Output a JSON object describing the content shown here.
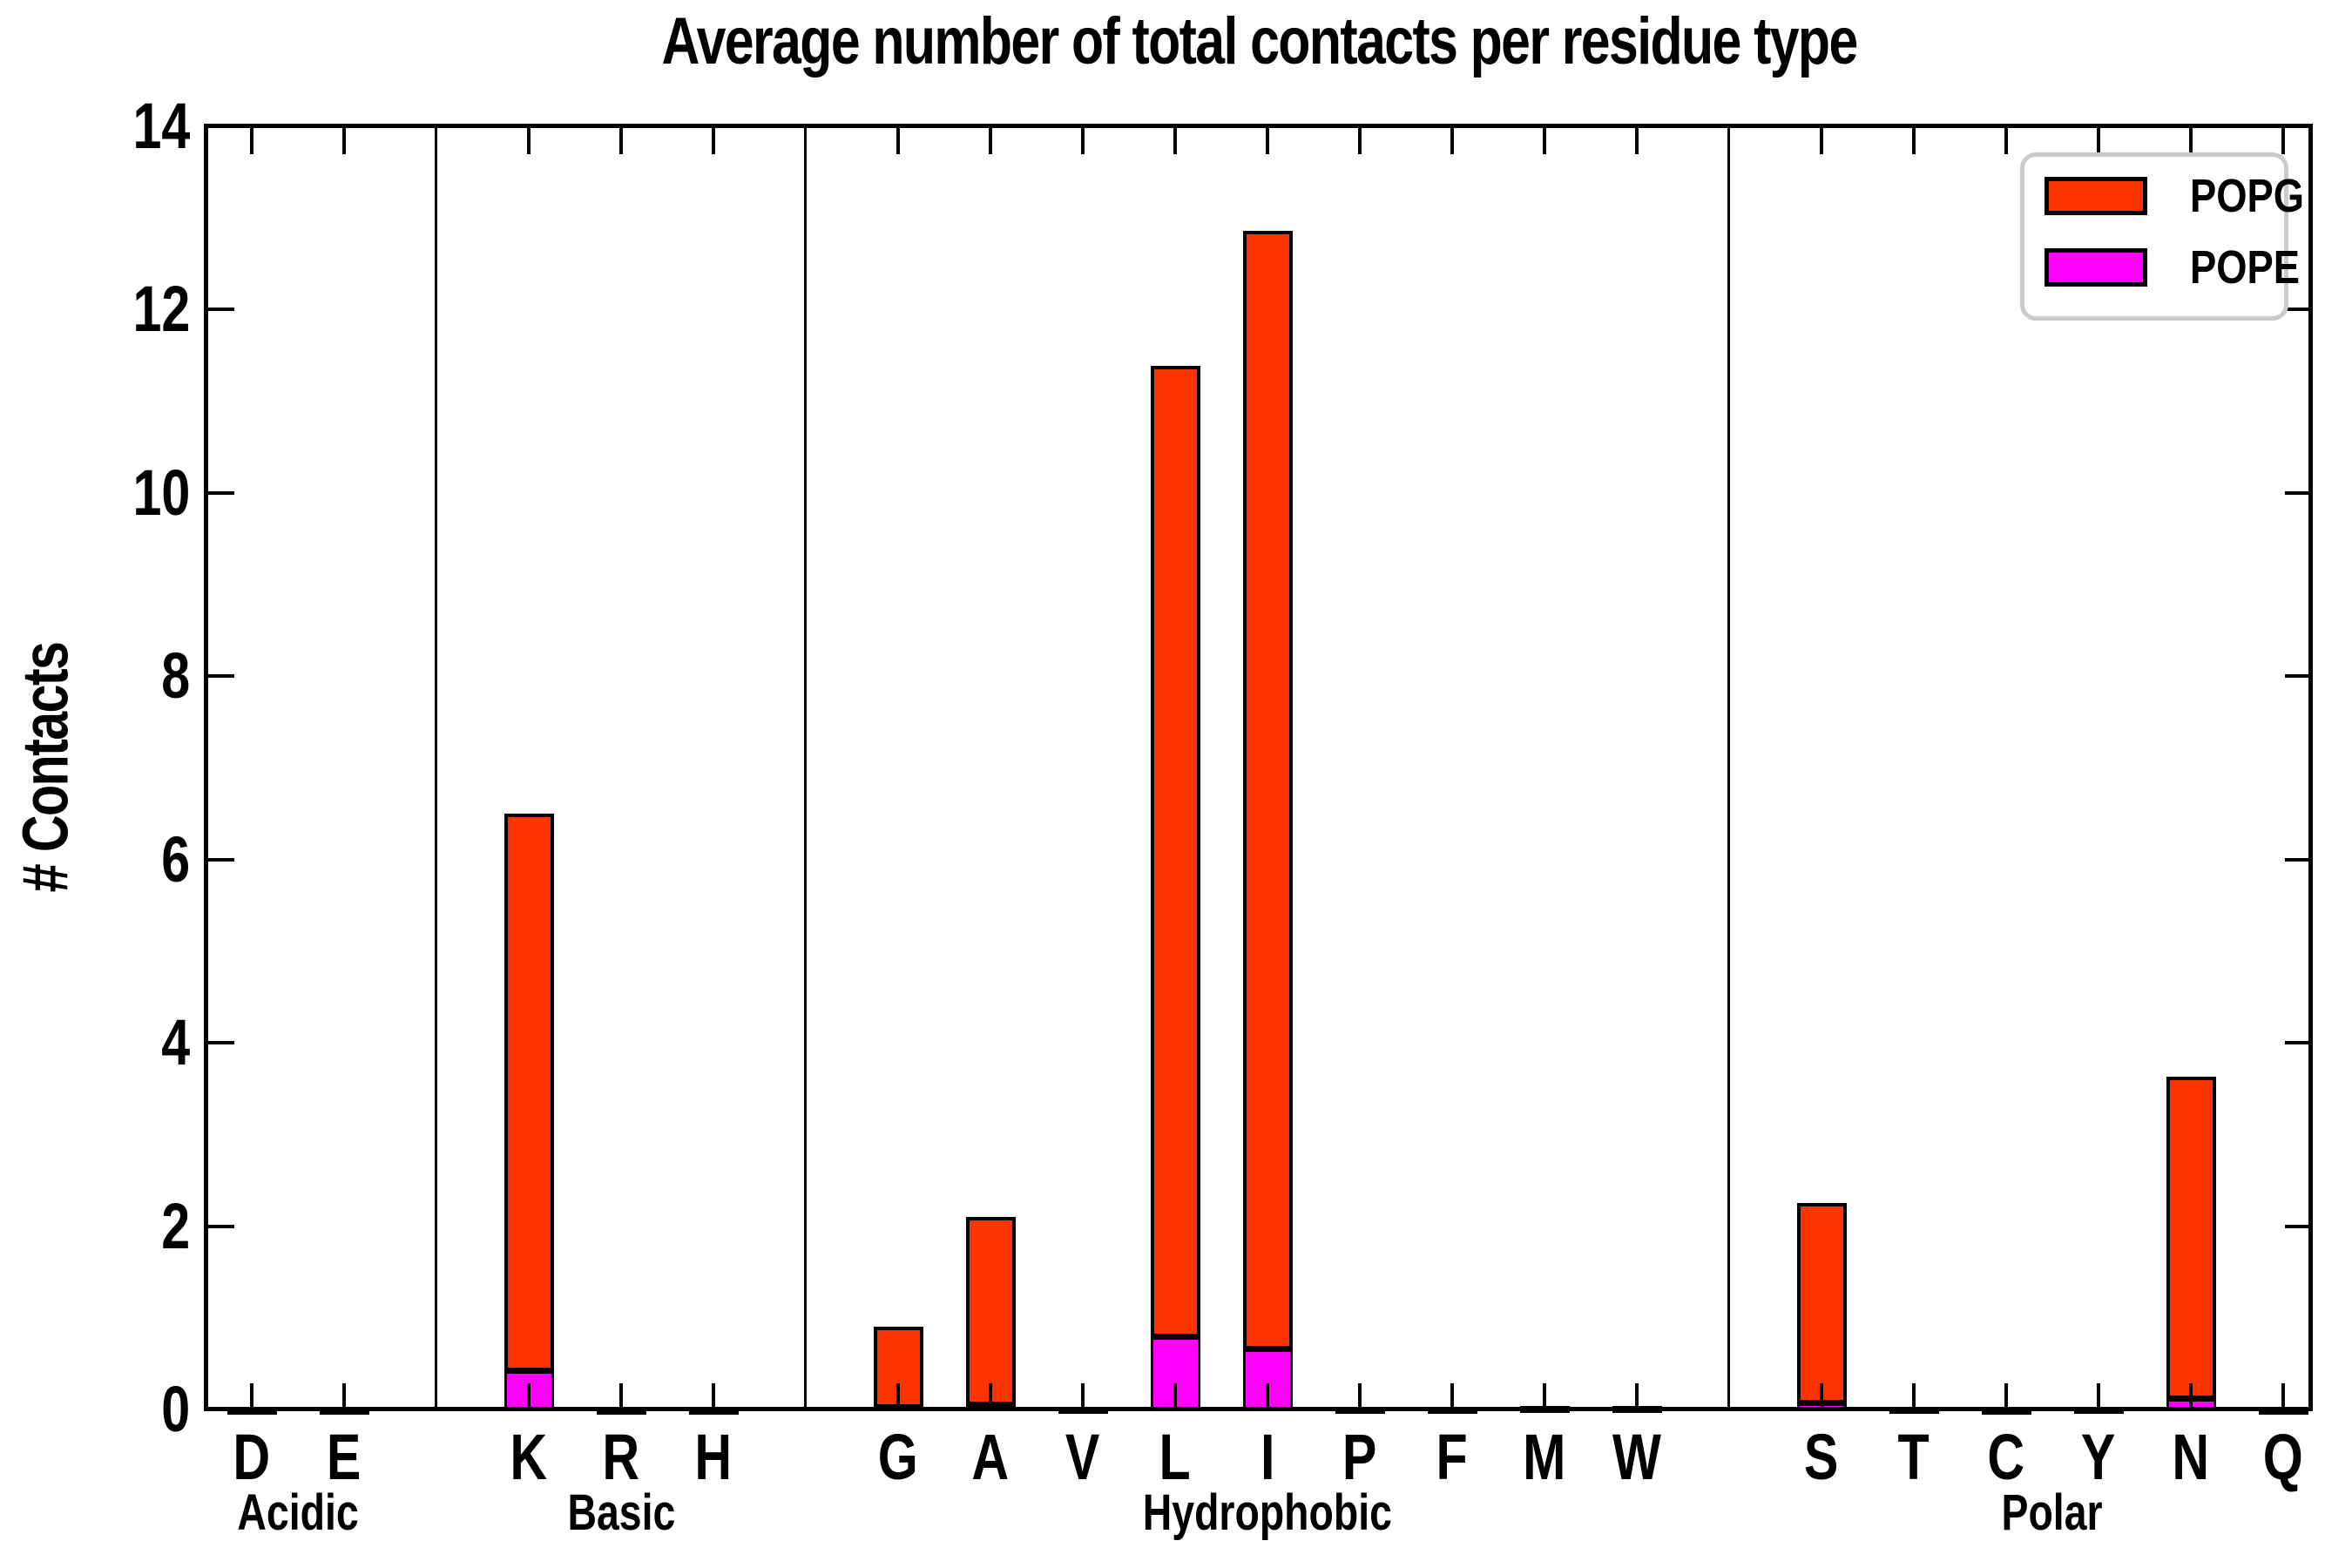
{
  "title": "Average number of total contacts per residue type",
  "ylabel": "# Contacts",
  "colors": {
    "popg": "#FF3300",
    "pope": "#FF00FF",
    "axis": "#000000",
    "legend_border": "#CBCBCB",
    "background": "#FFFFFF"
  },
  "legend": {
    "position": "upper right",
    "entries": [
      {
        "label": "POPG",
        "color_key": "popg"
      },
      {
        "label": "POPE",
        "color_key": "pope"
      }
    ]
  },
  "chart_data": {
    "type": "bar",
    "stacked": true,
    "title": "Average number of total contacts per residue type",
    "xlabel": "",
    "ylabel": "# Contacts",
    "ylim": [
      0,
      14
    ],
    "yticks": [
      "0",
      "2",
      "4",
      "6",
      "8",
      "10",
      "12",
      "14"
    ],
    "grid": false,
    "legend_position": "upper right",
    "categories": [
      "D",
      "E",
      "K",
      "R",
      "H",
      "G",
      "A",
      "V",
      "L",
      "I",
      "P",
      "F",
      "M",
      "W",
      "S",
      "T",
      "C",
      "Y",
      "N",
      "Q"
    ],
    "groups": [
      {
        "name": "Acidic",
        "categories": [
          "D",
          "E"
        ]
      },
      {
        "name": "Basic",
        "categories": [
          "K",
          "R",
          "H"
        ]
      },
      {
        "name": "Hydrophobic",
        "categories": [
          "G",
          "A",
          "V",
          "L",
          "I",
          "P",
          "F",
          "M",
          "W"
        ]
      },
      {
        "name": "Polar",
        "categories": [
          "S",
          "T",
          "C",
          "Y",
          "N",
          "Q"
        ]
      }
    ],
    "series": [
      {
        "name": "POPE",
        "color": "#FF00FF",
        "values": [
          0,
          0,
          0.42,
          0,
          0,
          0.02,
          0.05,
          0.01,
          0.79,
          0.66,
          0,
          0,
          0.01,
          0.01,
          0.07,
          0,
          0,
          0,
          0.11,
          0
        ]
      },
      {
        "name": "POPG",
        "color": "#FF3300",
        "values": [
          0.02,
          0.02,
          6.08,
          0.02,
          0.02,
          0.88,
          2.05,
          0.02,
          10.6,
          12.2,
          0.03,
          0.03,
          0.03,
          0.03,
          2.18,
          0.03,
          0.02,
          0.03,
          3.52,
          0.02
        ]
      }
    ],
    "totals": [
      0.02,
      0.02,
      6.5,
      0.02,
      0.02,
      0.9,
      2.1,
      0.03,
      11.39,
      12.86,
      0.03,
      0.03,
      0.04,
      0.04,
      2.25,
      0.03,
      0.02,
      0.03,
      3.63,
      0.02
    ]
  }
}
